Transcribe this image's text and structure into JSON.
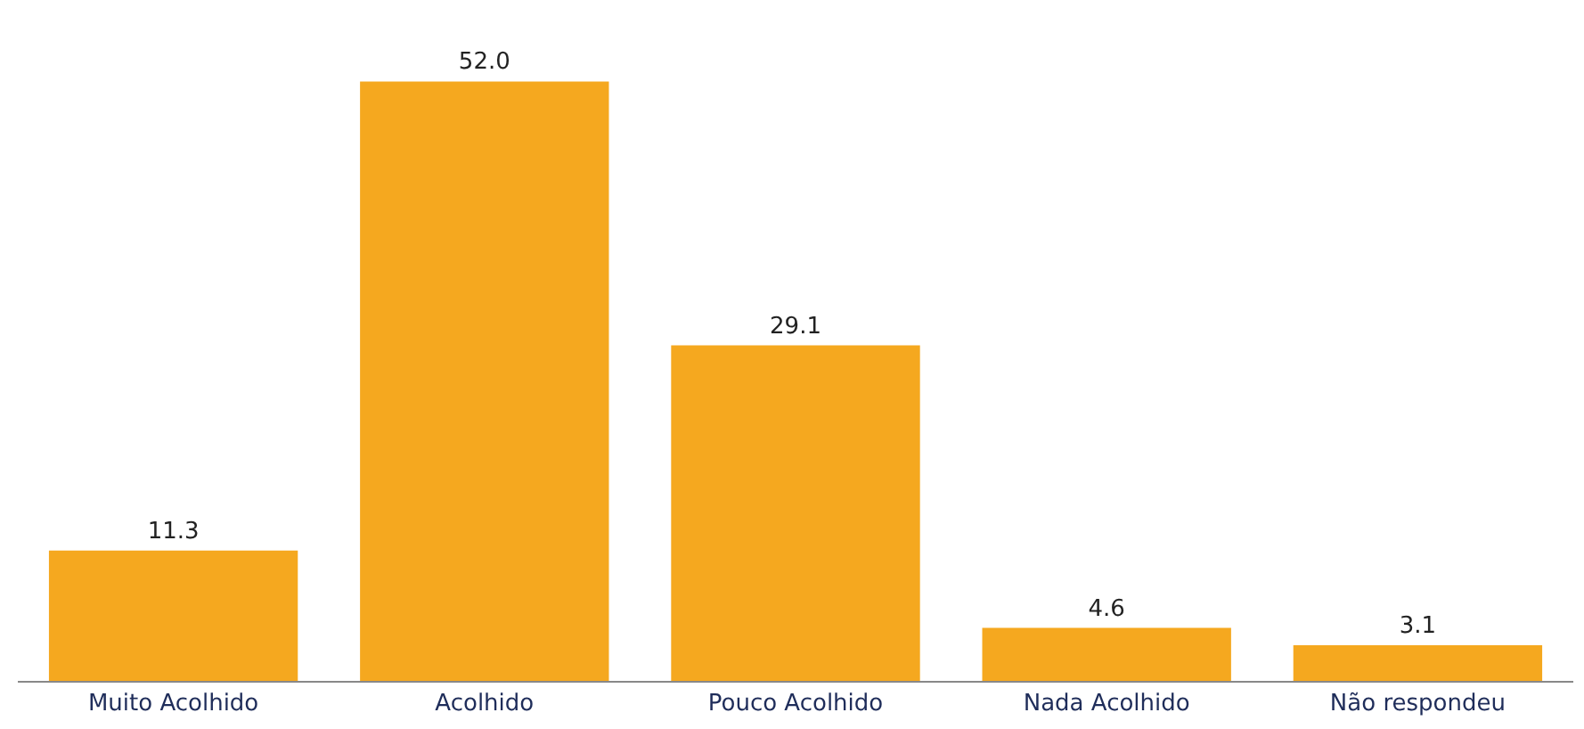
{
  "chart_data": {
    "type": "bar",
    "categories": [
      "Muito Acolhido",
      "Acolhido",
      "Pouco Acolhido",
      "Nada Acolhido",
      "Não respondeu"
    ],
    "values": [
      11.3,
      52.0,
      29.1,
      4.6,
      3.1
    ],
    "value_labels": [
      "11.3",
      "52.0",
      "29.1",
      "4.6",
      "3.1"
    ],
    "color": "#f5a81f"
  }
}
